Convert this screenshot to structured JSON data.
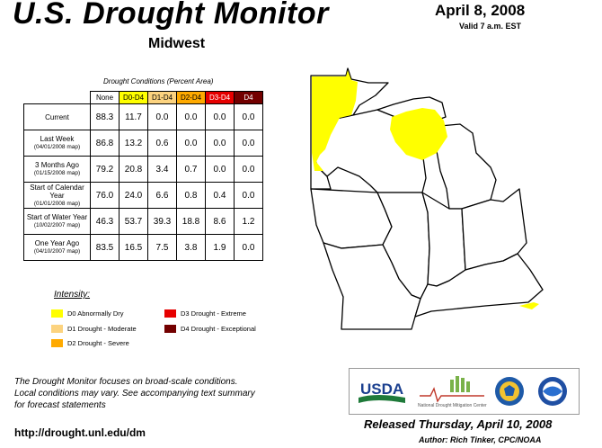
{
  "header": {
    "title": "U.S. Drought Monitor",
    "region": "Midwest",
    "date": "April 8, 2008",
    "valid": "Valid 7 a.m. EST"
  },
  "table": {
    "caption": "Drought Conditions (Percent Area)",
    "columns": [
      "None",
      "D0-D4",
      "D1-D4",
      "D2-D4",
      "D3-D4",
      "D4"
    ],
    "rows": [
      {
        "label": "Current",
        "sub": "",
        "values": [
          "88.3",
          "11.7",
          "0.0",
          "0.0",
          "0.0",
          "0.0"
        ]
      },
      {
        "label": "Last Week",
        "sub": "(04/01/2008 map)",
        "values": [
          "86.8",
          "13.2",
          "0.6",
          "0.0",
          "0.0",
          "0.0"
        ]
      },
      {
        "label": "3 Months Ago",
        "sub": "(01/15/2008 map)",
        "values": [
          "79.2",
          "20.8",
          "3.4",
          "0.7",
          "0.0",
          "0.0"
        ]
      },
      {
        "label": "Start of Calendar Year",
        "sub": "(01/01/2008 map)",
        "values": [
          "76.0",
          "24.0",
          "6.6",
          "0.8",
          "0.4",
          "0.0"
        ]
      },
      {
        "label": "Start of Water Year",
        "sub": "(10/02/2007 map)",
        "values": [
          "46.3",
          "53.7",
          "39.3",
          "18.8",
          "8.6",
          "1.2"
        ]
      },
      {
        "label": "One Year Ago",
        "sub": "(04/10/2007 map)",
        "values": [
          "83.5",
          "16.5",
          "7.5",
          "3.8",
          "1.9",
          "0.0"
        ]
      }
    ]
  },
  "legend": {
    "title": "Intensity:",
    "items": [
      {
        "label": "D0 Abnormally Dry",
        "color": "#ffff00"
      },
      {
        "label": "D1 Drought - Moderate",
        "color": "#fcd37f"
      },
      {
        "label": "D2 Drought - Severe",
        "color": "#ffaa00"
      },
      {
        "label": "D3 Drought - Extreme",
        "color": "#e60000"
      },
      {
        "label": "D4 Drought - Exceptional",
        "color": "#730000"
      }
    ]
  },
  "footer": {
    "note_line1": "The Drought Monitor focuses on broad-scale conditions.",
    "note_line2": "Local conditions may vary. See accompanying text summary",
    "note_line3": "for forecast statements",
    "url": "http://drought.unl.edu/dm",
    "released": "Released Thursday, April 10, 2008",
    "author": "Author: Rich Tinker, CPC/NOAA"
  },
  "logos": {
    "usda": "USDA",
    "ndmc": "National Drought Mitigation Center"
  },
  "colors": {
    "d0": "#ffff00",
    "state_fill": "#ffffff",
    "border": "#000000"
  }
}
